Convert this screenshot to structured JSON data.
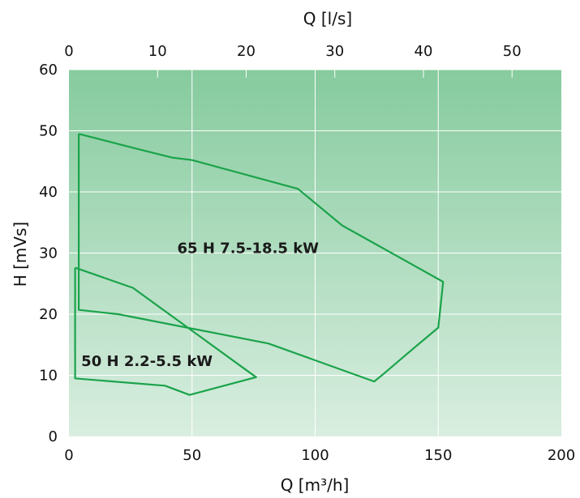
{
  "chart_data": {
    "type": "line",
    "title": "",
    "xlabel": "Q [m³/h]",
    "x2label": "Q [l/s]",
    "ylabel": "H [mVs]",
    "xlim": [
      0,
      200
    ],
    "x2lim": [
      0,
      55.56
    ],
    "ylim": [
      0,
      60
    ],
    "x_ticks": [
      0,
      50,
      100,
      150,
      200
    ],
    "x_tick_labels": [
      "0",
      "50",
      "100",
      "150",
      "200"
    ],
    "x2_ticks": [
      0,
      10,
      20,
      30,
      40,
      50
    ],
    "x2_tick_labels": [
      "0",
      "10",
      "20",
      "30",
      "40",
      "50"
    ],
    "y_ticks": [
      0,
      10,
      20,
      30,
      40,
      50,
      60
    ],
    "y_tick_labels": [
      "0",
      "10",
      "20",
      "30",
      "40",
      "50",
      "60"
    ],
    "grid": true,
    "colors": {
      "outline": "#1aa34a",
      "background_top": "#86cb9e",
      "background_bottom": "#d9eee0",
      "grid": "#ffffff"
    },
    "series": [
      {
        "name": "65 H 7.5-18.5 kW",
        "label_at": {
          "x": 44,
          "y": 30
        },
        "label_anchor": "start",
        "points": [
          {
            "x": 4,
            "y": 49.5
          },
          {
            "x": 28,
            "y": 47
          },
          {
            "x": 42,
            "y": 45.6
          },
          {
            "x": 50,
            "y": 45.2
          },
          {
            "x": 93,
            "y": 40.5
          },
          {
            "x": 111,
            "y": 34.5
          },
          {
            "x": 152,
            "y": 25.3
          },
          {
            "x": 150,
            "y": 17.8
          },
          {
            "x": 137,
            "y": 13.4
          },
          {
            "x": 128,
            "y": 10.3
          },
          {
            "x": 124,
            "y": 9
          },
          {
            "x": 81,
            "y": 15.2
          },
          {
            "x": 20,
            "y": 20
          },
          {
            "x": 4,
            "y": 20.7
          },
          {
            "x": 4,
            "y": 49.5
          }
        ]
      },
      {
        "name": "50 H 2.2-5.5 kW",
        "label_at": {
          "x": 5,
          "y": 11.5
        },
        "label_anchor": "start",
        "points": [
          {
            "x": 2.5,
            "y": 27.6
          },
          {
            "x": 26,
            "y": 24.3
          },
          {
            "x": 76,
            "y": 9.7
          },
          {
            "x": 49,
            "y": 6.8
          },
          {
            "x": 39,
            "y": 8.3
          },
          {
            "x": 2.5,
            "y": 9.5
          },
          {
            "x": 2.5,
            "y": 27.6
          }
        ]
      }
    ]
  }
}
